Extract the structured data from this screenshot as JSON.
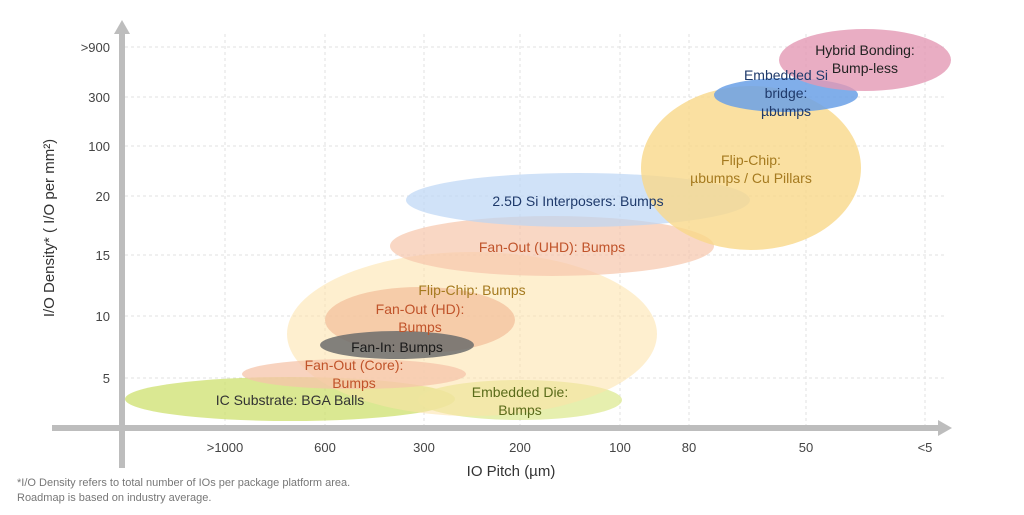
{
  "chart_data": {
    "type": "bubble-region",
    "xlabel": "IO Pitch (µm)",
    "ylabel": "I/O Density* ( I/O per mm²)",
    "x_ticks": [
      ">1000",
      "600",
      "300",
      "200",
      "100",
      "80",
      "50",
      "<5"
    ],
    "y_ticks": [
      "5",
      "10",
      "15",
      "20",
      "100",
      "300",
      ">900"
    ],
    "grid": true,
    "regions": [
      {
        "name": "IC Substrate: BGA Balls",
        "color": "#cde06e",
        "label_color": "#333333",
        "lines": [
          "IC Substrate: BGA Balls"
        ]
      },
      {
        "name": "Embedded Die: Bumps",
        "color": "#dde993",
        "label_color": "#5a6b1a",
        "lines": [
          "Embedded Die:",
          "Bumps"
        ]
      },
      {
        "name": "Flip-Chip: Bumps",
        "color": "#fde2a8",
        "label_color": "#a57a1f",
        "lines": [
          "Flip-Chip: Bumps"
        ]
      },
      {
        "name": "Fan-Out (HD): Bumps",
        "color": "#f1b995",
        "label_color": "#c0532a",
        "lines": [
          "Fan-Out (HD):",
          "Bumps"
        ]
      },
      {
        "name": "Fan-Out (Core): Bumps",
        "color": "#f5c4a9",
        "label_color": "#c0532a",
        "lines": [
          "Fan-Out (Core):",
          "Bumps"
        ]
      },
      {
        "name": "Fan-In: Bumps",
        "color": "#6c6c6c",
        "label_color": "#1a1a1a",
        "lines": [
          "Fan-In: Bumps"
        ]
      },
      {
        "name": "Fan-Out (UHD): Bumps",
        "color": "#f6c6ab",
        "label_color": "#c0532a",
        "lines": [
          "Fan-Out (UHD): Bumps"
        ]
      },
      {
        "name": "2.5D Si Interposers: Bumps",
        "color": "#bcd6f5",
        "label_color": "#1f3a6b",
        "lines": [
          "2.5D Si Interposers: Bumps"
        ]
      },
      {
        "name": "Flip-Chip: µbumps / Cu Pillars",
        "color": "#f9d88a",
        "label_color": "#a57a1f",
        "lines": [
          "Flip-Chip:",
          "µbumps / Cu Pillars"
        ]
      },
      {
        "name": "Embedded Si bridge: µbumps",
        "color": "#6aa0e6",
        "label_color": "#1f3a6b",
        "lines": [
          "Embedded Si",
          "bridge:",
          "µbumps"
        ]
      },
      {
        "name": "Hybrid Bonding: Bump-less",
        "color": "#e398b4",
        "label_color": "#222222",
        "lines": [
          "Hybrid Bonding:",
          "Bump-less"
        ]
      }
    ]
  },
  "footnote": {
    "line1": "*I/O Density refers to total number of IOs per package platform area.",
    "line2": "Roadmap is based on industry average."
  }
}
